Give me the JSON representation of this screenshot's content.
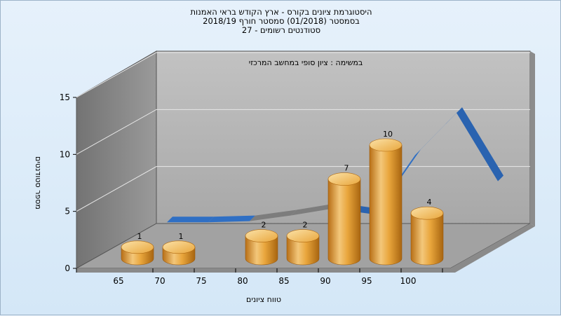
{
  "chart_data": {
    "type": "bar",
    "title_lines": [
      "היסטוגרמת ציונים בקורס - ארץ הקודש בראי האמנות",
      "בסמסטר  (01/2018)  סמסטר חורף  2018/19",
      "סטודנטים רשומים - 27"
    ],
    "subtitle": "במשימה : ציון סופי במחשב המרכזי",
    "categories": [
      "65",
      "70",
      "75",
      "80",
      "85",
      "90",
      "95",
      "100"
    ],
    "values": [
      1,
      1,
      0,
      2,
      2,
      7,
      10,
      4
    ],
    "ylabel": "מספר סטודנטים",
    "xlabel": "טווח ציונים",
    "ylim": [
      0,
      15
    ],
    "yticks": [
      0,
      5,
      10,
      15
    ],
    "trend_line": [
      {
        "x": 65,
        "y": 0.6
      },
      {
        "x": 70,
        "y": 0.6
      },
      {
        "x": 75,
        "y": 0.7
      },
      {
        "x": 80,
        "y": 1.2
      },
      {
        "x": 85,
        "y": 1.8
      },
      {
        "x": 90,
        "y": 1.3
      },
      {
        "x": 95,
        "y": 6.5
      },
      {
        "x": 100,
        "y": 10.2
      },
      {
        "x": 105,
        "y": 4.2
      }
    ],
    "grid": true,
    "colors": {
      "bar": "#e9a63c",
      "bar_light": "#f6d28e",
      "bar_dark": "#b86f16",
      "trend": "#2f6fc4",
      "trend_back": "#7d7d7d",
      "back_wall": "#b4b4b4",
      "side_wall": "#8f8f8f",
      "floor": "#a4a4a4"
    }
  }
}
